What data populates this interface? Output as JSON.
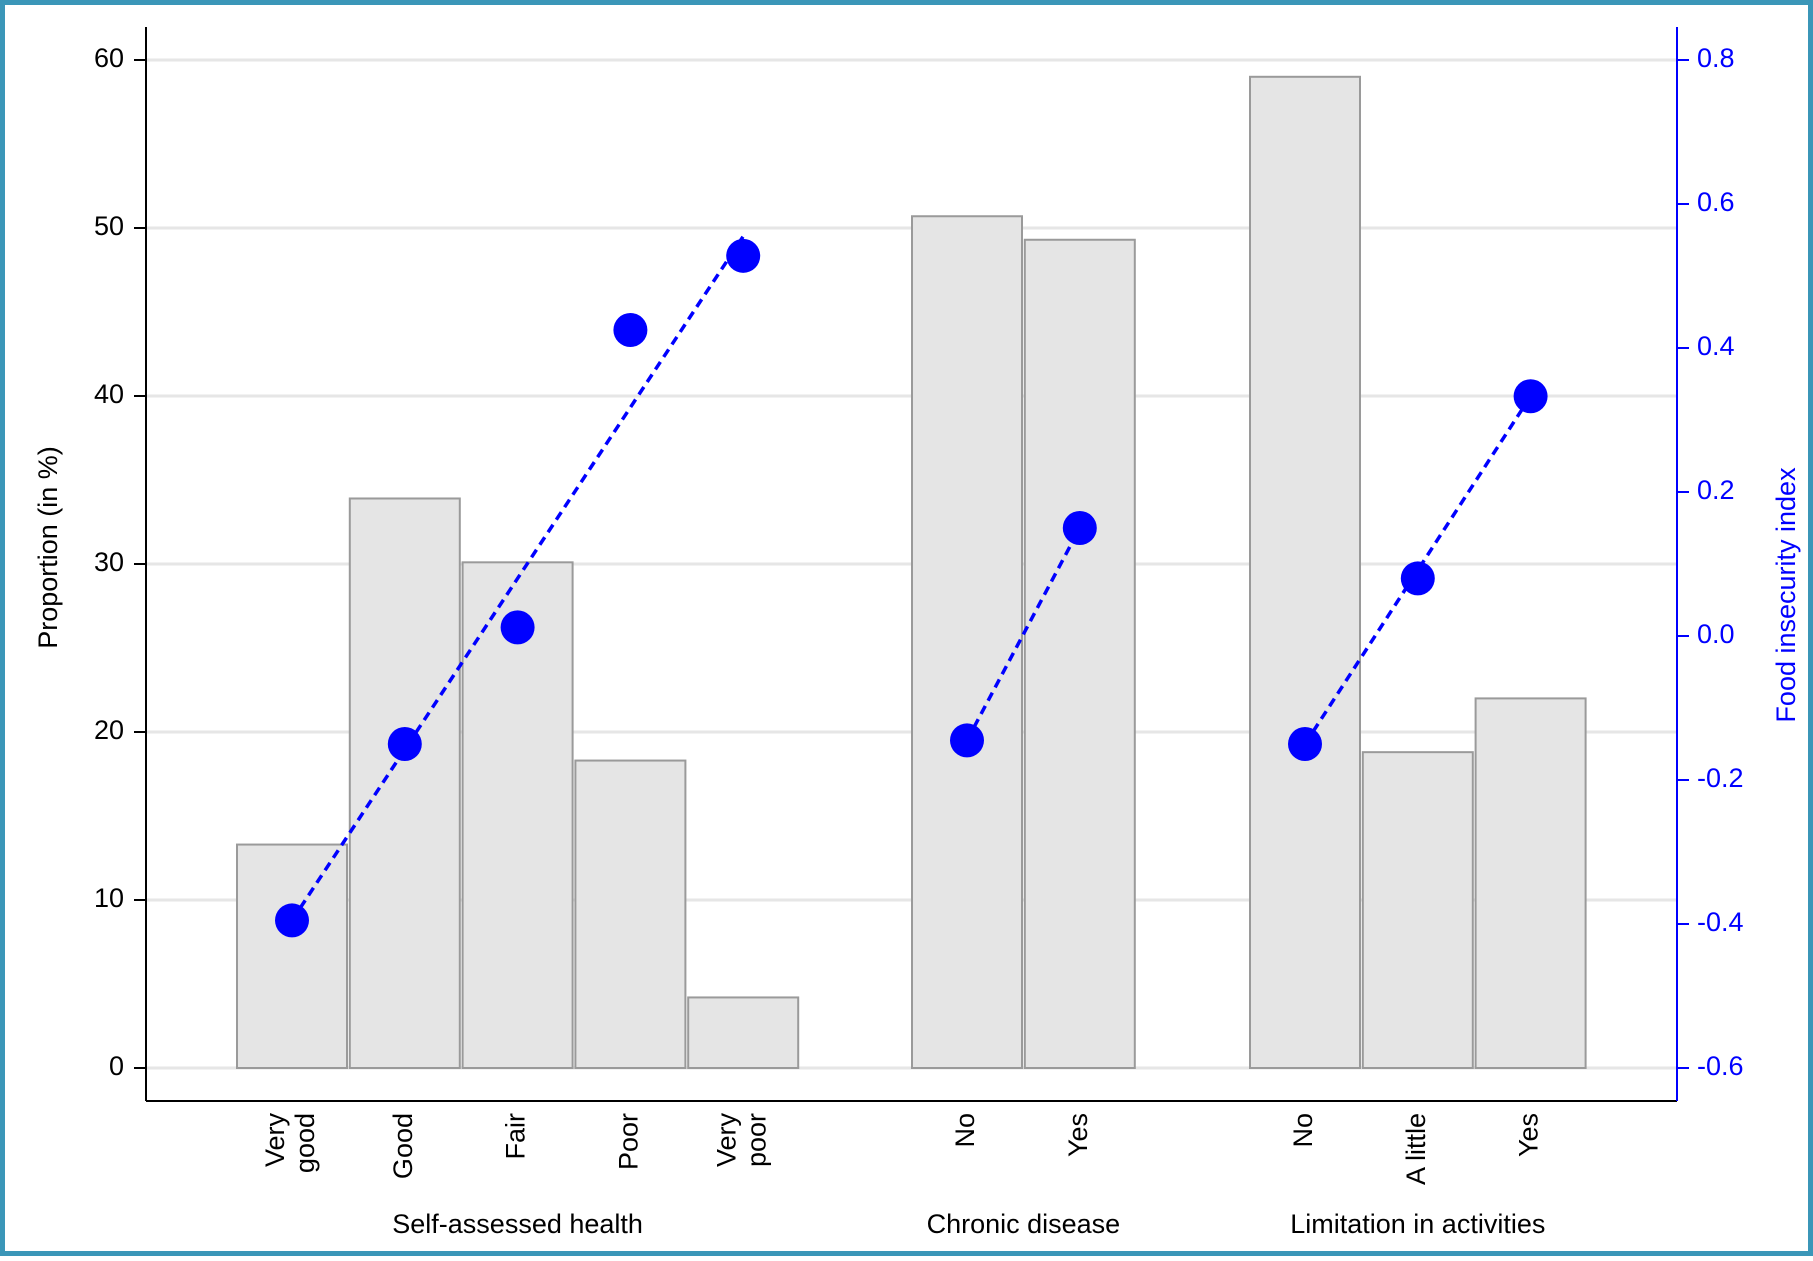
{
  "chart_data": {
    "type": "bar",
    "y_left": {
      "label": "Proportion (in %)",
      "lim": [
        0,
        60
      ],
      "ticks": [
        "0",
        "10",
        "20",
        "30",
        "40",
        "50",
        "60"
      ]
    },
    "y_right": {
      "label": "Food insecurity index",
      "lim": [
        -0.6,
        0.8
      ],
      "ticks": [
        "-0.6",
        "-0.4",
        "-0.2",
        "0.0",
        "0.2",
        "0.4",
        "0.6",
        "0.8"
      ]
    },
    "grid": true,
    "groups": [
      {
        "name": "Self-assessed health",
        "categories": [
          [
            "Very",
            "good"
          ],
          [
            "Good"
          ],
          [
            "Fair"
          ],
          [
            "Poor"
          ],
          [
            "Very",
            "poor"
          ]
        ],
        "bar_values": [
          13.3,
          33.9,
          30.1,
          18.3,
          4.2
        ],
        "index_values": [
          -0.395,
          -0.15,
          0.012,
          0.425,
          0.528
        ],
        "trend": [
          -0.395,
          0.555
        ]
      },
      {
        "name": "Chronic disease",
        "categories": [
          [
            "No"
          ],
          [
            "Yes"
          ]
        ],
        "bar_values": [
          50.7,
          49.3
        ],
        "index_values": [
          -0.145,
          0.15
        ],
        "trend": [
          -0.145,
          0.15
        ]
      },
      {
        "name": "Limitation in activities",
        "categories": [
          [
            "No"
          ],
          [
            "A little"
          ],
          [
            "Yes"
          ]
        ],
        "bar_values": [
          59.0,
          18.8,
          22.0
        ],
        "index_values": [
          -0.15,
          0.08,
          0.333
        ],
        "trend": [
          -0.15,
          0.333
        ]
      }
    ],
    "colors": {
      "bar_fill": "#e5e5e5",
      "bar_stroke": "#9a9a9a",
      "index": "#0000ff",
      "grid": "#e6e6e6"
    }
  }
}
